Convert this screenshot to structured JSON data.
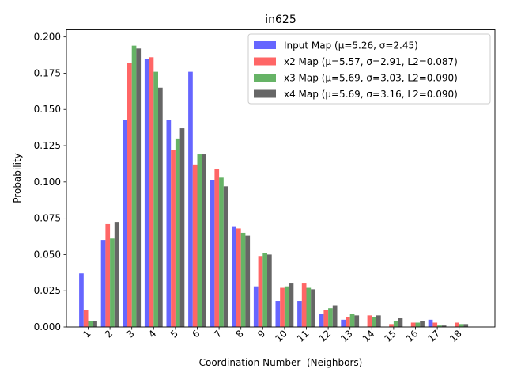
{
  "chart_data": {
    "type": "bar",
    "title": "in625",
    "xlabel": "Coordination Number  (Neighbors)",
    "ylabel": "Probability",
    "ylim": [
      0,
      0.205
    ],
    "yticks": [
      "0.000",
      "0.025",
      "0.050",
      "0.075",
      "0.100",
      "0.125",
      "0.150",
      "0.175",
      "0.200"
    ],
    "categories": [
      "1",
      "2",
      "3",
      "4",
      "5",
      "6",
      "7",
      "8",
      "9",
      "10",
      "11",
      "12",
      "13",
      "14",
      "15",
      "16",
      "17",
      "18"
    ],
    "legend_position": "top-right",
    "series": [
      {
        "name": "Input Map (μ=5.26, σ=2.45)",
        "color": "#6666ff",
        "values": [
          0.037,
          0.06,
          0.143,
          0.185,
          0.143,
          0.176,
          0.101,
          0.069,
          0.028,
          0.018,
          0.018,
          0.009,
          0.005,
          0.0,
          0.0,
          0.0,
          0.005,
          0.0
        ]
      },
      {
        "name": "x2 Map (μ=5.57, σ=2.91, L2=0.087)",
        "color": "#ff6666",
        "values": [
          0.012,
          0.071,
          0.182,
          0.186,
          0.122,
          0.112,
          0.109,
          0.068,
          0.049,
          0.027,
          0.03,
          0.012,
          0.007,
          0.008,
          0.002,
          0.003,
          0.003,
          0.003
        ]
      },
      {
        "name": "x3 Map (μ=5.69, σ=3.03, L2=0.090)",
        "color": "#66b366",
        "values": [
          0.004,
          0.061,
          0.194,
          0.176,
          0.13,
          0.119,
          0.103,
          0.065,
          0.051,
          0.028,
          0.027,
          0.013,
          0.009,
          0.007,
          0.004,
          0.003,
          0.001,
          0.002
        ]
      },
      {
        "name": "x4 Map (μ=5.69, σ=3.16, L2=0.090)",
        "color": "#666666",
        "values": [
          0.004,
          0.072,
          0.192,
          0.165,
          0.137,
          0.119,
          0.097,
          0.063,
          0.05,
          0.03,
          0.026,
          0.015,
          0.008,
          0.008,
          0.006,
          0.004,
          0.001,
          0.002
        ]
      }
    ]
  }
}
